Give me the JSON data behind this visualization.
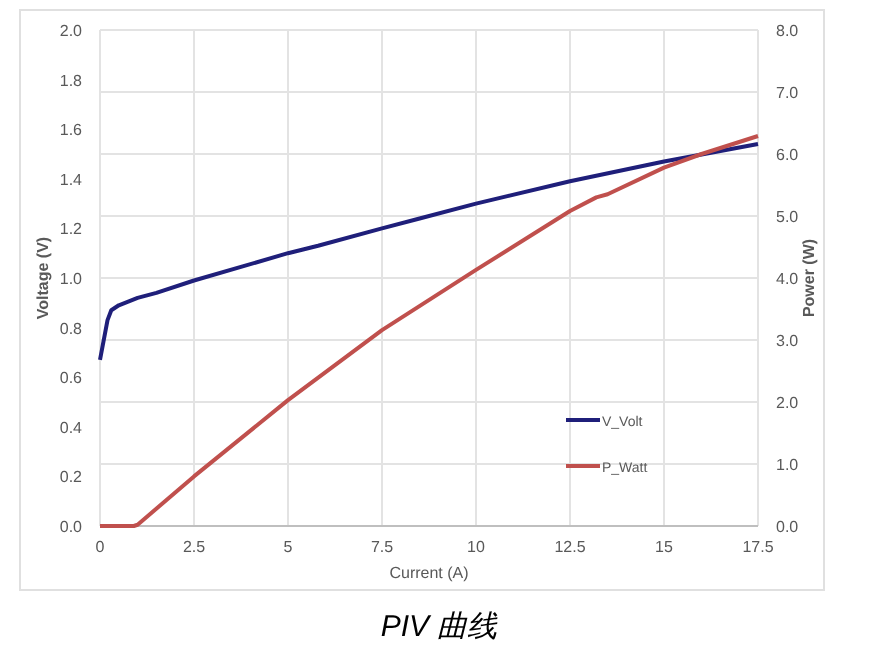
{
  "chart_data": {
    "type": "line",
    "title": "PIV 曲线",
    "xlabel": "Current (A)",
    "ylabel": "Voltage (V)",
    "y2label": "Power (W)",
    "xlim": [
      0,
      17.5
    ],
    "xticks": [
      0,
      2.5,
      5,
      7.5,
      10,
      12.5,
      15,
      17.5
    ],
    "ylim": [
      0,
      2
    ],
    "yticks": [
      {
        "value": 0,
        "label": "0.0"
      },
      {
        "value": 0.2,
        "label": "0.2"
      },
      {
        "value": 0.4,
        "label": "0.4"
      },
      {
        "value": 0.6,
        "label": "0.6"
      },
      {
        "value": 0.8,
        "label": "0.8"
      },
      {
        "value": 1,
        "label": "1.0"
      },
      {
        "value": 1.2,
        "label": "1.2"
      },
      {
        "value": 1.4,
        "label": "1.4"
      },
      {
        "value": 1.6,
        "label": "1.6"
      },
      {
        "value": 1.8,
        "label": "1.8"
      },
      {
        "value": 2,
        "label": "2.0"
      }
    ],
    "y2lim": [
      0,
      8
    ],
    "y2ticks": [
      {
        "value": 0,
        "label": "0.0"
      },
      {
        "value": 1,
        "label": "1.0"
      },
      {
        "value": 2,
        "label": "2.0"
      },
      {
        "value": 3,
        "label": "3.0"
      },
      {
        "value": 4,
        "label": "4.0"
      },
      {
        "value": 5,
        "label": "5.0"
      },
      {
        "value": 6,
        "label": "6.0"
      },
      {
        "value": 7,
        "label": "7.0"
      },
      {
        "value": 8,
        "label": "8.0"
      }
    ],
    "grid": true,
    "legend": "bottom right",
    "series": [
      {
        "name": "V_Volt",
        "color": "#1f1f7a",
        "x": [
          0,
          0.2,
          0.3,
          0.5,
          1,
          1.5,
          2.5,
          5,
          5.8,
          7.5,
          8.5,
          10,
          12.5,
          15,
          17.5
        ],
        "values": [
          0.67,
          0.83,
          0.87,
          0.89,
          0.92,
          0.94,
          0.99,
          1.1,
          1.13,
          1.2,
          1.24,
          1.3,
          1.39,
          1.47,
          1.54
        ]
      },
      {
        "name": "P_Watt",
        "color": "#c0504d",
        "axis": "y2",
        "x": [
          0,
          0.9,
          1,
          2.5,
          5,
          7.5,
          10,
          12.5,
          13.2,
          13.5,
          15,
          16,
          17.5
        ],
        "values": [
          0,
          0,
          0.02,
          0.8,
          2.03,
          3.16,
          4.13,
          5.08,
          5.3,
          5.35,
          5.78,
          6,
          6.29
        ]
      }
    ]
  }
}
